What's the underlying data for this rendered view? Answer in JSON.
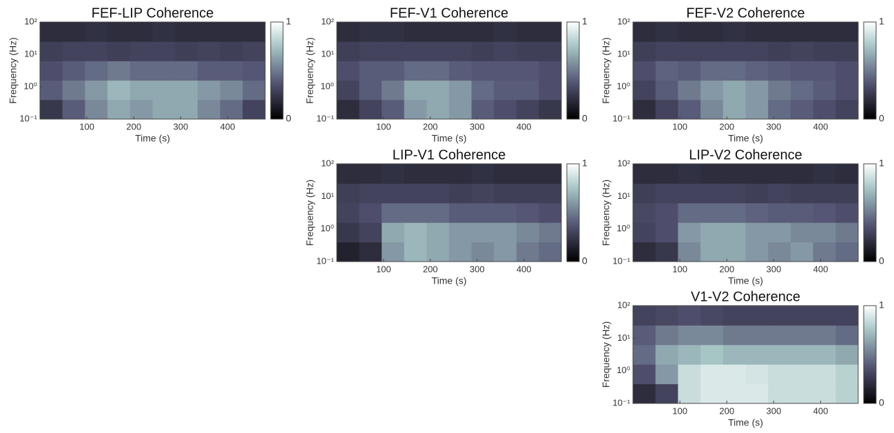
{
  "chart_data": [
    {
      "type": "heatmap",
      "title": "FEF-LIP Coherence",
      "xlabel": "Time (s)",
      "ylabel": "Frequency (Hz)",
      "xlim": [
        0,
        480
      ],
      "xticks": [
        100,
        200,
        300,
        400
      ],
      "ylim": [
        0.1,
        100
      ],
      "log_y": true,
      "yticks": [
        {
          "value": 0.1,
          "label": "10⁻¹"
        },
        {
          "value": 1,
          "label": "10⁰"
        },
        {
          "value": 10,
          "label": "10¹"
        },
        {
          "value": 100,
          "label": "10²"
        }
      ],
      "colormap": "bone",
      "clim": [
        0,
        1
      ],
      "cticks": [
        0,
        1
      ],
      "values": [
        [
          0.25,
          0.4,
          0.55,
          0.65,
          0.6,
          0.65,
          0.65,
          0.55,
          0.45,
          0.3
        ],
        [
          0.4,
          0.5,
          0.6,
          0.7,
          0.65,
          0.65,
          0.65,
          0.6,
          0.55,
          0.45
        ],
        [
          0.35,
          0.4,
          0.45,
          0.5,
          0.45,
          0.45,
          0.45,
          0.4,
          0.4,
          0.38
        ],
        [
          0.28,
          0.3,
          0.3,
          0.28,
          0.3,
          0.3,
          0.28,
          0.3,
          0.28,
          0.3
        ],
        [
          0.2,
          0.2,
          0.22,
          0.2,
          0.2,
          0.22,
          0.2,
          0.2,
          0.2,
          0.2
        ]
      ]
    },
    {
      "type": "heatmap",
      "title": "FEF-V1 Coherence",
      "xlabel": "Time (s)",
      "ylabel": "Frequency (Hz)",
      "xlim": [
        0,
        480
      ],
      "xticks": [
        100,
        200,
        300,
        400
      ],
      "ylim": [
        0.1,
        100
      ],
      "log_y": true,
      "yticks": [
        {
          "value": 0.1,
          "label": "10⁻¹"
        },
        {
          "value": 1,
          "label": "10⁰"
        },
        {
          "value": 10,
          "label": "10¹"
        },
        {
          "value": 100,
          "label": "10²"
        }
      ],
      "colormap": "bone",
      "clim": [
        0,
        1
      ],
      "cticks": [
        0,
        1
      ],
      "values": [
        [
          0.2,
          0.3,
          0.4,
          0.6,
          0.65,
          0.6,
          0.4,
          0.35,
          0.3,
          0.25
        ],
        [
          0.3,
          0.4,
          0.5,
          0.65,
          0.65,
          0.6,
          0.45,
          0.4,
          0.4,
          0.35
        ],
        [
          0.35,
          0.4,
          0.4,
          0.45,
          0.45,
          0.4,
          0.38,
          0.38,
          0.38,
          0.35
        ],
        [
          0.28,
          0.3,
          0.3,
          0.3,
          0.3,
          0.3,
          0.28,
          0.3,
          0.28,
          0.28
        ],
        [
          0.2,
          0.22,
          0.22,
          0.2,
          0.2,
          0.2,
          0.2,
          0.22,
          0.2,
          0.2
        ]
      ]
    },
    {
      "type": "heatmap",
      "title": "FEF-V2 Coherence",
      "xlabel": "Time (s)",
      "ylabel": "Frequency (Hz)",
      "xlim": [
        0,
        480
      ],
      "xticks": [
        100,
        200,
        300,
        400
      ],
      "ylim": [
        0.1,
        100
      ],
      "log_y": true,
      "yticks": [
        {
          "value": 0.1,
          "label": "10⁻¹"
        },
        {
          "value": 1,
          "label": "10⁰"
        },
        {
          "value": 10,
          "label": "10¹"
        },
        {
          "value": 100,
          "label": "10²"
        }
      ],
      "colormap": "bone",
      "clim": [
        0,
        1
      ],
      "cticks": [
        0,
        1
      ],
      "values": [
        [
          0.2,
          0.3,
          0.4,
          0.55,
          0.65,
          0.6,
          0.45,
          0.4,
          0.35,
          0.3
        ],
        [
          0.3,
          0.4,
          0.5,
          0.6,
          0.65,
          0.6,
          0.5,
          0.45,
          0.4,
          0.35
        ],
        [
          0.35,
          0.42,
          0.4,
          0.45,
          0.45,
          0.42,
          0.4,
          0.38,
          0.38,
          0.35
        ],
        [
          0.28,
          0.3,
          0.3,
          0.3,
          0.3,
          0.3,
          0.28,
          0.3,
          0.28,
          0.28
        ],
        [
          0.2,
          0.22,
          0.2,
          0.2,
          0.22,
          0.2,
          0.2,
          0.2,
          0.2,
          0.2
        ]
      ]
    },
    {
      "type": "heatmap",
      "title": "LIP-V1 Coherence",
      "xlabel": "Time (s)",
      "ylabel": "Frequency (Hz)",
      "xlim": [
        0,
        480
      ],
      "xticks": [
        100,
        200,
        300,
        400
      ],
      "ylim": [
        0.1,
        100
      ],
      "log_y": true,
      "yticks": [
        {
          "value": 0.1,
          "label": "10⁻¹"
        },
        {
          "value": 1,
          "label": "10⁰"
        },
        {
          "value": 10,
          "label": "10¹"
        },
        {
          "value": 100,
          "label": "10²"
        }
      ],
      "colormap": "bone",
      "clim": [
        0,
        1
      ],
      "cticks": [
        0,
        1
      ],
      "values": [
        [
          0.15,
          0.2,
          0.6,
          0.7,
          0.65,
          0.6,
          0.55,
          0.6,
          0.5,
          0.45
        ],
        [
          0.25,
          0.3,
          0.65,
          0.7,
          0.65,
          0.6,
          0.6,
          0.6,
          0.55,
          0.5
        ],
        [
          0.3,
          0.35,
          0.45,
          0.45,
          0.45,
          0.4,
          0.4,
          0.4,
          0.38,
          0.35
        ],
        [
          0.28,
          0.3,
          0.3,
          0.3,
          0.3,
          0.28,
          0.3,
          0.28,
          0.28,
          0.28
        ],
        [
          0.2,
          0.2,
          0.22,
          0.2,
          0.2,
          0.2,
          0.22,
          0.2,
          0.2,
          0.2
        ]
      ]
    },
    {
      "type": "heatmap",
      "title": "LIP-V2 Coherence",
      "xlabel": "Time (s)",
      "ylabel": "Frequency (Hz)",
      "xlim": [
        0,
        480
      ],
      "xticks": [
        100,
        200,
        300,
        400
      ],
      "ylim": [
        0.1,
        100
      ],
      "log_y": true,
      "yticks": [
        {
          "value": 0.1,
          "label": "10⁻¹"
        },
        {
          "value": 1,
          "label": "10⁰"
        },
        {
          "value": 10,
          "label": "10¹"
        },
        {
          "value": 100,
          "label": "10²"
        }
      ],
      "colormap": "bone",
      "clim": [
        0,
        1
      ],
      "cticks": [
        0,
        1
      ],
      "values": [
        [
          0.2,
          0.25,
          0.55,
          0.65,
          0.65,
          0.6,
          0.55,
          0.6,
          0.5,
          0.45
        ],
        [
          0.3,
          0.35,
          0.6,
          0.65,
          0.65,
          0.6,
          0.6,
          0.55,
          0.55,
          0.5
        ],
        [
          0.32,
          0.35,
          0.45,
          0.45,
          0.45,
          0.42,
          0.4,
          0.4,
          0.38,
          0.35
        ],
        [
          0.28,
          0.3,
          0.3,
          0.3,
          0.3,
          0.28,
          0.3,
          0.28,
          0.28,
          0.28
        ],
        [
          0.2,
          0.2,
          0.22,
          0.2,
          0.2,
          0.2,
          0.2,
          0.2,
          0.22,
          0.2
        ]
      ]
    },
    {
      "type": "heatmap",
      "title": "V1-V2 Coherence",
      "xlabel": "Time (s)",
      "ylabel": "Frequency (Hz)",
      "xlim": [
        0,
        480
      ],
      "xticks": [
        100,
        200,
        300,
        400
      ],
      "ylim": [
        0.1,
        100
      ],
      "log_y": true,
      "yticks": [
        {
          "value": 0.1,
          "label": "10⁻¹"
        },
        {
          "value": 1,
          "label": "10⁰"
        },
        {
          "value": 10,
          "label": "10¹"
        },
        {
          "value": 100,
          "label": "10²"
        }
      ],
      "colormap": "bone",
      "clim": [
        0,
        1
      ],
      "cticks": [
        0,
        1
      ],
      "values": [
        [
          0.2,
          0.3,
          0.85,
          0.9,
          0.9,
          0.9,
          0.85,
          0.85,
          0.85,
          0.8
        ],
        [
          0.35,
          0.6,
          0.85,
          0.9,
          0.9,
          0.88,
          0.85,
          0.85,
          0.85,
          0.8
        ],
        [
          0.45,
          0.65,
          0.7,
          0.75,
          0.7,
          0.7,
          0.7,
          0.7,
          0.7,
          0.65
        ],
        [
          0.4,
          0.5,
          0.55,
          0.55,
          0.5,
          0.5,
          0.5,
          0.5,
          0.5,
          0.45
        ],
        [
          0.3,
          0.32,
          0.35,
          0.32,
          0.3,
          0.3,
          0.3,
          0.3,
          0.3,
          0.3
        ]
      ]
    }
  ]
}
